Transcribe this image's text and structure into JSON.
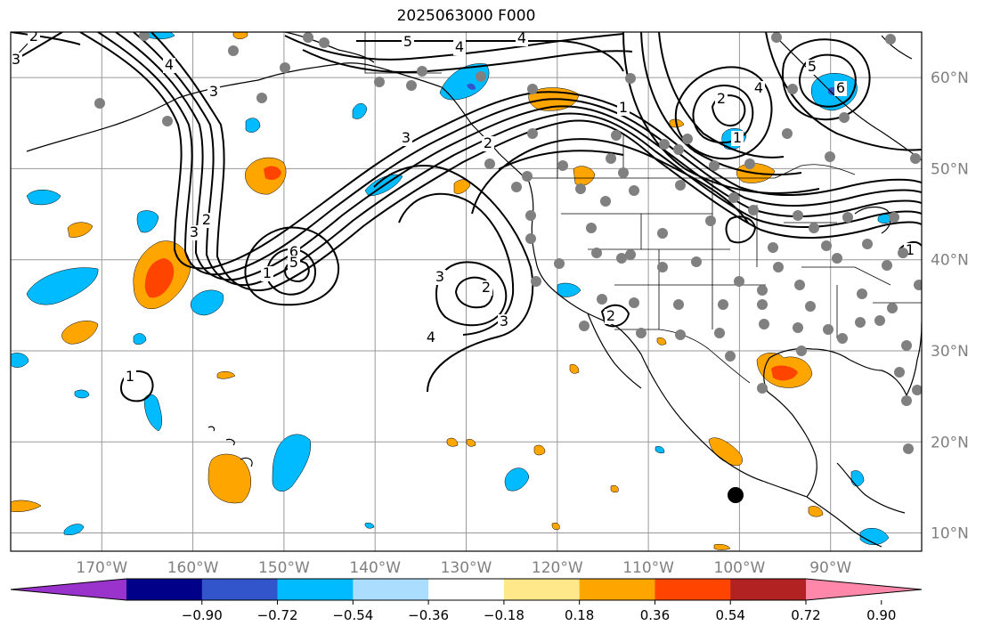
{
  "title": "2025063000 F000",
  "map": {
    "projection": "PlateCarree",
    "lon_range": [
      -180,
      -80
    ],
    "lat_range": [
      8,
      65
    ],
    "lon_ticks": [
      "170°W",
      "160°W",
      "150°W",
      "140°W",
      "130°W",
      "120°W",
      "110°W",
      "100°W",
      "90°W"
    ],
    "lat_ticks": [
      "10°N",
      "20°N",
      "30°N",
      "40°N",
      "50°N",
      "60°N"
    ],
    "grid": true,
    "contour_labels": [
      "2",
      "3",
      "4",
      "5",
      "4",
      "4",
      "3",
      "2",
      "1",
      "3",
      "2",
      "1",
      "3",
      "2",
      "3",
      "4",
      "1",
      "6",
      "5",
      "2",
      "3",
      "5",
      "4",
      "6",
      "1",
      "1",
      "2"
    ]
  },
  "colorbar": {
    "ticks": [
      "−0.90",
      "−0.72",
      "−0.54",
      "−0.36",
      "−0.18",
      "0.18",
      "0.36",
      "0.54",
      "0.72",
      "0.90"
    ],
    "colors": [
      "#9933cc",
      "#000088",
      "#3355cc",
      "#00bbff",
      "#aaddff",
      "#ffffff",
      "#ffe88a",
      "#ffa500",
      "#ff4400",
      "#b22222",
      "#ff88aa"
    ]
  }
}
